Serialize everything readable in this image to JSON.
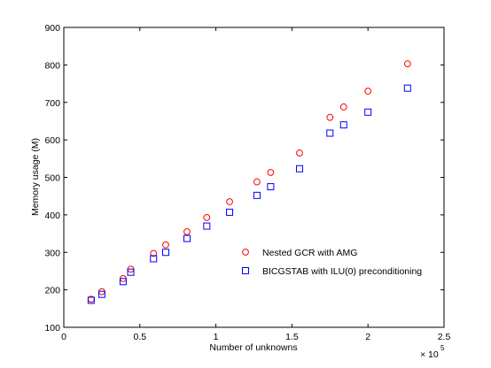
{
  "chart_data": {
    "type": "scatter",
    "title": "",
    "xlabel": "Number of unknowns",
    "ylabel": "Memory usage (M)",
    "x_multiplier_label": "× 10",
    "x_multiplier_exponent": "5",
    "xlim": [
      0,
      2.5
    ],
    "ylim": [
      100,
      900
    ],
    "x_ticks": [
      0,
      0.5,
      1,
      1.5,
      2,
      2.5
    ],
    "x_tick_labels": [
      "0",
      "0.5",
      "1",
      "1.5",
      "2",
      "2.5"
    ],
    "y_ticks": [
      100,
      200,
      300,
      400,
      500,
      600,
      700,
      800,
      900
    ],
    "y_tick_labels": [
      "100",
      "200",
      "300",
      "400",
      "500",
      "600",
      "700",
      "800",
      "900"
    ],
    "grid": false,
    "legend_position": "center-right",
    "series": [
      {
        "name": "Nested GCR with AMG",
        "marker": "circle",
        "color": "#ff0000",
        "x": [
          0.18,
          0.25,
          0.39,
          0.44,
          0.59,
          0.67,
          0.81,
          0.94,
          1.09,
          1.27,
          1.36,
          1.55,
          1.75,
          1.84,
          2.0,
          2.26
        ],
        "y": [
          175,
          195,
          230,
          255,
          297,
          320,
          355,
          393,
          435,
          488,
          513,
          565,
          660,
          688,
          730,
          803
        ]
      },
      {
        "name": "BICGSTAB with ILU(0) preconditioning",
        "marker": "square",
        "color": "#0000ff",
        "x": [
          0.18,
          0.25,
          0.39,
          0.44,
          0.59,
          0.67,
          0.81,
          0.94,
          1.09,
          1.27,
          1.36,
          1.55,
          1.75,
          1.84,
          2.0,
          2.26
        ],
        "y": [
          172,
          188,
          222,
          247,
          283,
          300,
          337,
          370,
          407,
          452,
          475,
          523,
          618,
          640,
          674,
          738
        ]
      }
    ]
  }
}
